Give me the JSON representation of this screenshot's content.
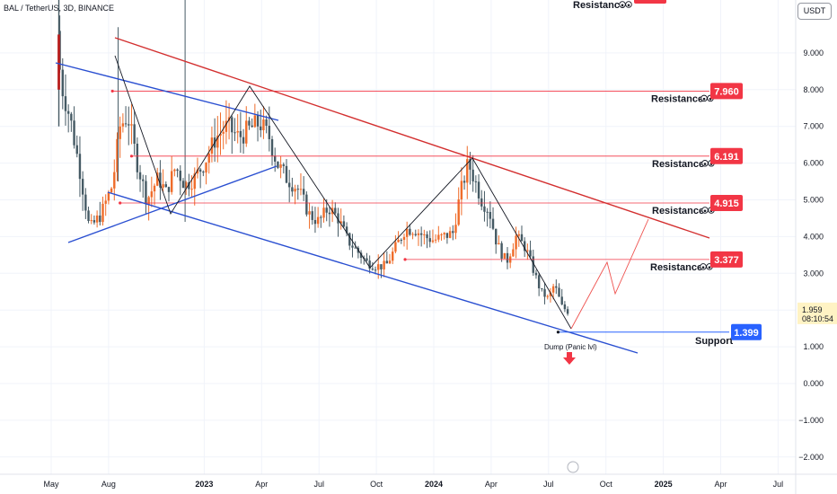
{
  "header": {
    "symbol": "BAL / TetherUS, 3D, BINANCE",
    "currency": "USDT"
  },
  "price_tag": {
    "value": "1.959",
    "countdown": "08:10:54"
  },
  "chart_data": {
    "type": "candlestick",
    "title": "BAL / TetherUS, 3D, BINANCE",
    "y_ticks": [
      "9.000",
      "8.000",
      "7.000",
      "6.000",
      "5.000",
      "4.000",
      "3.000",
      "2.000",
      "1.000",
      "0.000",
      "−1.000",
      "−2.000"
    ],
    "ylim": [
      -2.5,
      10.5
    ],
    "x_ticks": [
      {
        "label": "May",
        "bold": false,
        "t": 0
      },
      {
        "label": "Aug",
        "bold": false,
        "t": 3
      },
      {
        "label": "2023",
        "bold": true,
        "t": 8
      },
      {
        "label": "Apr",
        "bold": false,
        "t": 11
      },
      {
        "label": "Jul",
        "bold": false,
        "t": 14
      },
      {
        "label": "Oct",
        "bold": false,
        "t": 17
      },
      {
        "label": "2024",
        "bold": true,
        "t": 20
      },
      {
        "label": "Apr",
        "bold": false,
        "t": 23
      },
      {
        "label": "Jul",
        "bold": false,
        "t": 26
      },
      {
        "label": "Oct",
        "bold": false,
        "t": 29
      },
      {
        "label": "2025",
        "bold": true,
        "t": 32
      },
      {
        "label": "Apr",
        "bold": false,
        "t": 35
      },
      {
        "label": "Jul",
        "bold": false,
        "t": 38
      }
    ],
    "resistance_levels": [
      {
        "label": "Resistance",
        "value": 7.96,
        "text": "7.960"
      },
      {
        "label": "Resistance",
        "value": 6.191,
        "text": "6.191"
      },
      {
        "label": "Resistance",
        "value": 4.915,
        "text": "4.915"
      },
      {
        "label": "Resistance",
        "value": 3.377,
        "text": "3.377"
      }
    ],
    "top_resistance_label": "Resistance",
    "support": {
      "label": "Support",
      "value": 1.399,
      "text": "1.399"
    },
    "annotation": "Dump (Panic lvl)",
    "close_price": 1.959,
    "colors": {
      "up": "#ef6c2a",
      "down": "#455a64",
      "resistance": "#f23645",
      "support": "#2962ff",
      "downtrend": "#d32f2f",
      "channel": "#2a4fd1",
      "wave": "#131722",
      "projection": "#ef5350"
    }
  }
}
